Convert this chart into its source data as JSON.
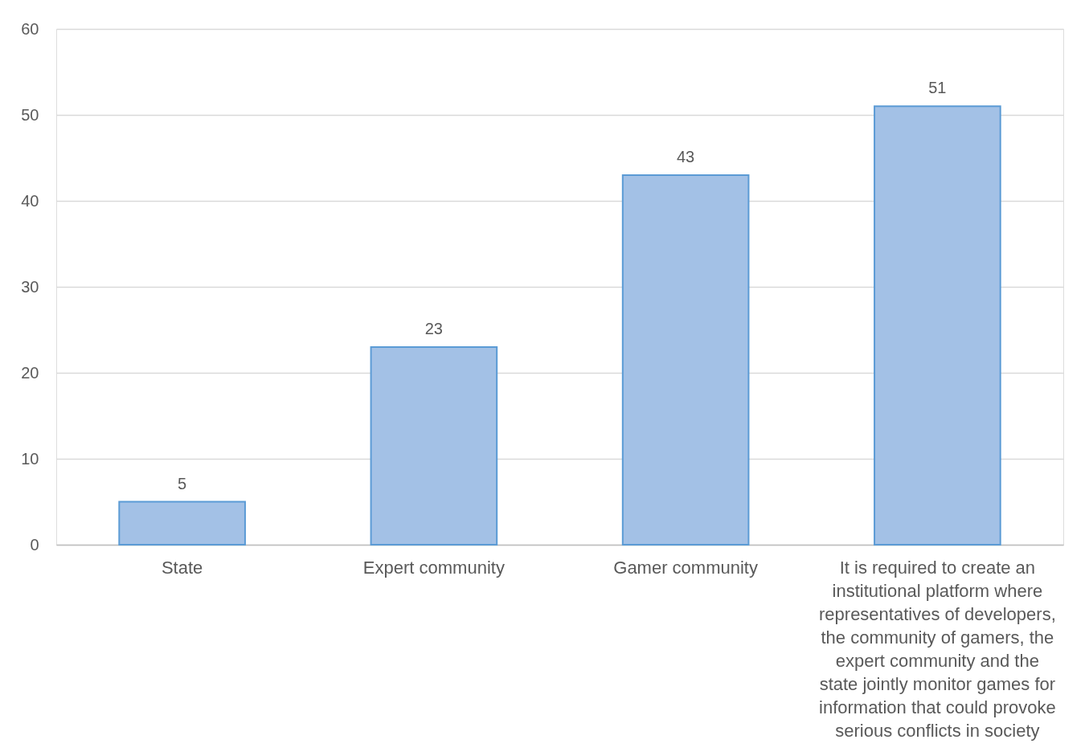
{
  "chart_data": {
    "type": "bar",
    "categories": [
      "State",
      "Expert community",
      "Gamer community",
      "It is required to create an institutional platform where representatives of developers, the community of gamers, the expert community and the state jointly monitor games for information that could provoke serious conflicts in society"
    ],
    "values": [
      5,
      23,
      43,
      51
    ],
    "color": "#a3c1e6",
    "ylim": [
      0,
      60
    ],
    "yticks": [
      0,
      10,
      20,
      30,
      40,
      50,
      60
    ],
    "grid": "y",
    "data_labels": true
  }
}
